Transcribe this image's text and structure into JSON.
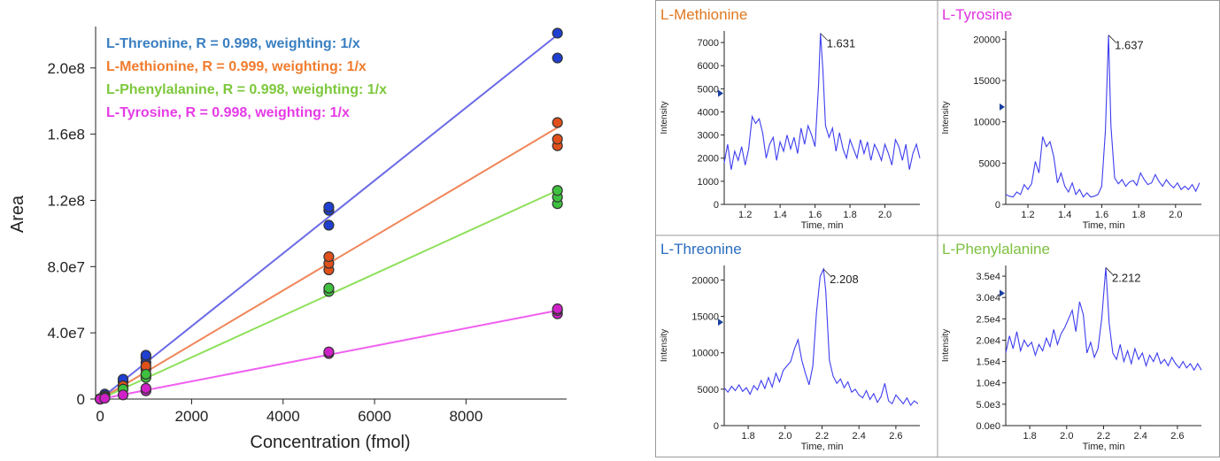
{
  "chart_data": [
    {
      "type": "scatter",
      "xlabel": "Concentration (fmol)",
      "ylabel": "Area",
      "xlim": [
        -100,
        10200
      ],
      "ylim": [
        0,
        225000000
      ],
      "x_ticks": [
        0,
        2000,
        4000,
        6000,
        8000
      ],
      "x_tick_labels": [
        "0",
        "2000",
        "4000",
        "6000",
        "8000"
      ],
      "y_ticks": [
        0,
        40000000,
        80000000,
        120000000,
        160000000,
        200000000
      ],
      "y_tick_labels": [
        "0",
        "4.0e7",
        "8.0e7",
        "1.2e8",
        "1.6e8",
        "2.0e8"
      ],
      "legend_placement": "top-left",
      "series": [
        {
          "name": "L-Threonine",
          "label": "L-Threonine, R = 0.998, weighting: 1/x",
          "color": "#3a7fc1",
          "marker_color": "#1f3fd1",
          "line_color": "#6a6ae6",
          "fit": {
            "slope": 22000,
            "intercept": 0
          },
          "points": [
            [
              0,
              0
            ],
            [
              0,
              300000
            ],
            [
              100,
              2500000
            ],
            [
              100,
              3000000
            ],
            [
              500,
              10500000
            ],
            [
              500,
              12000000
            ],
            [
              1000,
              22000000
            ],
            [
              1000,
              25000000
            ],
            [
              1000,
              26500000
            ],
            [
              5000,
              105000000
            ],
            [
              5000,
              114000000
            ],
            [
              5000,
              116000000
            ],
            [
              10000,
              206000000
            ],
            [
              10000,
              221000000
            ]
          ]
        },
        {
          "name": "L-Methionine",
          "label": "L-Methionine, R = 0.999, weighting: 1/x",
          "color": "#f07c2e",
          "marker_color": "#e0501a",
          "line_color": "#f0875a",
          "fit": {
            "slope": 16400,
            "intercept": 0
          },
          "points": [
            [
              0,
              0
            ],
            [
              100,
              1800000
            ],
            [
              500,
              8000000
            ],
            [
              1000,
              15000000
            ],
            [
              1000,
              18000000
            ],
            [
              1000,
              20000000
            ],
            [
              5000,
              78000000
            ],
            [
              5000,
              82000000
            ],
            [
              5000,
              86000000
            ],
            [
              10000,
              153000000
            ],
            [
              10000,
              157000000
            ],
            [
              10000,
              167000000
            ]
          ]
        },
        {
          "name": "L-Phenylalanine",
          "label": "L-Phenylalanine, R = 0.998, weighting: 1/x",
          "color": "#7dc83c",
          "marker_color": "#3ec13e",
          "line_color": "#8ee05a",
          "fit": {
            "slope": 12600,
            "intercept": 0
          },
          "points": [
            [
              0,
              0
            ],
            [
              100,
              1200000
            ],
            [
              500,
              6000000
            ],
            [
              1000,
              13000000
            ],
            [
              1000,
              15000000
            ],
            [
              5000,
              65000000
            ],
            [
              5000,
              67000000
            ],
            [
              10000,
              118000000
            ],
            [
              10000,
              122000000
            ],
            [
              10000,
              126000000
            ]
          ]
        },
        {
          "name": "L-Tyrosine",
          "label": "L-Tyrosine, R = 0.998, weighting: 1/x",
          "color": "#e63be6",
          "marker_color": "#d020c8",
          "line_color": "#f060f0",
          "fit": {
            "slope": 5350,
            "intercept": 0
          },
          "points": [
            [
              0,
              0
            ],
            [
              100,
              500000
            ],
            [
              500,
              2500000
            ],
            [
              1000,
              5000000
            ],
            [
              1000,
              6500000
            ],
            [
              5000,
              27500000
            ],
            [
              5000,
              28500000
            ],
            [
              10000,
              51500000
            ],
            [
              10000,
              53500000
            ],
            [
              10000,
              54500000
            ]
          ]
        }
      ]
    },
    {
      "type": "line",
      "title": "L-Methionine",
      "title_color": "#e07820",
      "xlabel": "Time, min",
      "ylabel": "Intensity",
      "xlim": [
        1.08,
        2.2
      ],
      "ylim": [
        0,
        7500
      ],
      "x_ticks": [
        1.2,
        1.4,
        1.6,
        1.8,
        2.0
      ],
      "x_tick_labels": [
        "1.2",
        "1.4",
        "1.6",
        "1.8",
        "2.0"
      ],
      "y_ticks": [
        0,
        1000,
        2000,
        3000,
        4000,
        5000,
        6000,
        7000
      ],
      "y_tick_labels": [
        "0",
        "1000",
        "2000",
        "3000",
        "4000",
        "5000",
        "6000",
        "7000"
      ],
      "peak_label": "1.631",
      "peak": [
        1.631,
        7400
      ],
      "marker_y": 4800,
      "x": [
        1.08,
        1.1,
        1.12,
        1.14,
        1.16,
        1.18,
        1.2,
        1.22,
        1.24,
        1.26,
        1.28,
        1.3,
        1.32,
        1.34,
        1.36,
        1.38,
        1.4,
        1.42,
        1.44,
        1.46,
        1.48,
        1.5,
        1.52,
        1.54,
        1.56,
        1.58,
        1.6,
        1.62,
        1.631,
        1.645,
        1.66,
        1.68,
        1.7,
        1.72,
        1.74,
        1.76,
        1.78,
        1.8,
        1.82,
        1.84,
        1.86,
        1.88,
        1.9,
        1.92,
        1.94,
        1.96,
        1.98,
        2.0,
        2.02,
        2.04,
        2.06,
        2.08,
        2.1,
        2.12,
        2.14,
        2.16,
        2.18,
        2.2
      ],
      "y": [
        1800,
        2600,
        1500,
        2300,
        1900,
        2500,
        1700,
        2400,
        3800,
        3500,
        3700,
        3100,
        2000,
        2600,
        2900,
        1900,
        2700,
        2300,
        3000,
        2400,
        2900,
        2200,
        3300,
        2600,
        3400,
        3000,
        2500,
        5200,
        7400,
        5800,
        3400,
        2900,
        3300,
        2300,
        3100,
        2400,
        2000,
        2800,
        2400,
        2000,
        2800,
        2200,
        2700,
        1900,
        2600,
        2300,
        1900,
        2600,
        2200,
        1700,
        2800,
        2500,
        1900,
        2600,
        1500,
        2200,
        2600,
        2000
      ]
    },
    {
      "type": "line",
      "title": "L-Tyrosine",
      "title_color": "#e030e0",
      "xlabel": "Time, min",
      "ylabel": "Intensity",
      "xlim": [
        1.08,
        2.14
      ],
      "ylim": [
        0,
        21000
      ],
      "x_ticks": [
        1.2,
        1.4,
        1.6,
        1.8,
        2.0
      ],
      "x_tick_labels": [
        "1.2",
        "1.4",
        "1.6",
        "1.8",
        "2.0"
      ],
      "y_ticks": [
        0,
        5000,
        10000,
        15000,
        20000
      ],
      "y_tick_labels": [
        "0",
        "5000",
        "10000",
        "15000",
        "20000"
      ],
      "peak_label": "1.637",
      "peak": [
        1.637,
        20500
      ],
      "marker_y": 11800,
      "x": [
        1.08,
        1.1,
        1.12,
        1.14,
        1.16,
        1.18,
        1.2,
        1.22,
        1.24,
        1.26,
        1.28,
        1.3,
        1.32,
        1.34,
        1.36,
        1.38,
        1.4,
        1.42,
        1.44,
        1.46,
        1.48,
        1.5,
        1.52,
        1.54,
        1.56,
        1.58,
        1.6,
        1.62,
        1.637,
        1.65,
        1.67,
        1.69,
        1.71,
        1.73,
        1.75,
        1.77,
        1.79,
        1.81,
        1.83,
        1.85,
        1.87,
        1.89,
        1.91,
        1.93,
        1.95,
        1.97,
        1.99,
        2.01,
        2.03,
        2.05,
        2.07,
        2.09,
        2.11,
        2.13
      ],
      "y": [
        1200,
        1000,
        900,
        1500,
        1200,
        2400,
        1800,
        2500,
        5200,
        3800,
        8200,
        7000,
        7600,
        5800,
        2600,
        3800,
        2200,
        1500,
        2600,
        1200,
        1800,
        900,
        1400,
        900,
        1000,
        1200,
        2200,
        9000,
        20500,
        9500,
        3200,
        2500,
        3000,
        2200,
        2700,
        2900,
        2300,
        3800,
        3000,
        2400,
        2600,
        3600,
        2800,
        2200,
        3000,
        2400,
        2000,
        2600,
        1800,
        2200,
        1800,
        2400,
        1600,
        2600
      ]
    },
    {
      "type": "line",
      "title": "L-Threonine",
      "title_color": "#2a6cc0",
      "xlabel": "Time, min",
      "ylabel": "Intensity",
      "xlim": [
        1.67,
        2.73
      ],
      "ylim": [
        0,
        22000
      ],
      "x_ticks": [
        1.8,
        2.0,
        2.2,
        2.4,
        2.6
      ],
      "x_tick_labels": [
        "1.8",
        "2.0",
        "2.2",
        "2.4",
        "2.6"
      ],
      "y_ticks": [
        0,
        5000,
        10000,
        15000,
        20000
      ],
      "y_tick_labels": [
        "0",
        "5000",
        "10000",
        "15000",
        "20000"
      ],
      "peak_label": "2.208",
      "peak": [
        2.208,
        21500
      ],
      "marker_y": 14200,
      "x": [
        1.67,
        1.69,
        1.71,
        1.73,
        1.75,
        1.77,
        1.79,
        1.81,
        1.83,
        1.85,
        1.87,
        1.89,
        1.91,
        1.93,
        1.95,
        1.97,
        1.99,
        2.01,
        2.03,
        2.05,
        2.07,
        2.09,
        2.11,
        2.13,
        2.15,
        2.17,
        2.19,
        2.208,
        2.22,
        2.24,
        2.26,
        2.28,
        2.3,
        2.32,
        2.34,
        2.36,
        2.38,
        2.4,
        2.42,
        2.44,
        2.46,
        2.48,
        2.5,
        2.52,
        2.54,
        2.56,
        2.58,
        2.6,
        2.62,
        2.64,
        2.66,
        2.68,
        2.7,
        2.72
      ],
      "y": [
        5200,
        4600,
        5400,
        4800,
        5600,
        4700,
        5200,
        4300,
        5500,
        4900,
        6200,
        5100,
        6600,
        5300,
        7200,
        6000,
        7600,
        8200,
        8800,
        10500,
        11800,
        9000,
        7200,
        5600,
        8200,
        15500,
        20500,
        21500,
        18500,
        9000,
        6800,
        5800,
        6400,
        5200,
        6000,
        4600,
        5000,
        4200,
        3800,
        4800,
        3600,
        4400,
        3200,
        4000,
        5800,
        3400,
        3000,
        4200,
        3600,
        3000,
        3800,
        2800,
        3400,
        3000
      ]
    },
    {
      "type": "line",
      "title": "L-Phenylalanine",
      "title_color": "#7dc040",
      "xlabel": "Time, min",
      "ylabel": "Intensity",
      "xlim": [
        1.67,
        2.73
      ],
      "ylim": [
        0,
        37500
      ],
      "x_ticks": [
        1.8,
        2.0,
        2.2,
        2.4,
        2.6
      ],
      "x_tick_labels": [
        "1.8",
        "2.0",
        "2.2",
        "2.4",
        "2.6"
      ],
      "y_ticks": [
        0,
        5000,
        10000,
        15000,
        20000,
        25000,
        30000,
        35000
      ],
      "y_tick_labels": [
        "0.0e0",
        "5.0e3",
        "1.0e4",
        "1.5e4",
        "2.0e4",
        "2.5e4",
        "3.0e4",
        "3.5e4"
      ],
      "peak_label": "2.212",
      "peak": [
        2.212,
        37000
      ],
      "marker_y": 31000,
      "x": [
        1.67,
        1.69,
        1.71,
        1.73,
        1.75,
        1.77,
        1.79,
        1.81,
        1.83,
        1.85,
        1.87,
        1.89,
        1.91,
        1.93,
        1.95,
        1.97,
        1.99,
        2.01,
        2.03,
        2.05,
        2.07,
        2.09,
        2.11,
        2.13,
        2.15,
        2.17,
        2.19,
        2.212,
        2.23,
        2.25,
        2.27,
        2.29,
        2.31,
        2.33,
        2.35,
        2.37,
        2.39,
        2.41,
        2.43,
        2.45,
        2.47,
        2.49,
        2.51,
        2.53,
        2.55,
        2.57,
        2.59,
        2.61,
        2.63,
        2.65,
        2.67,
        2.69,
        2.71,
        2.73
      ],
      "y": [
        17000,
        21000,
        18000,
        22000,
        17500,
        20000,
        18500,
        19500,
        16500,
        19000,
        17500,
        20500,
        18500,
        22500,
        19000,
        21500,
        23000,
        25000,
        27000,
        22000,
        29000,
        26000,
        17000,
        19500,
        16000,
        18000,
        25000,
        37000,
        24000,
        17000,
        15500,
        19000,
        15000,
        17500,
        14500,
        18000,
        15500,
        17000,
        14000,
        16500,
        15000,
        17000,
        14500,
        15500,
        14000,
        16000,
        14500,
        13500,
        15000,
        13500,
        14500,
        13000,
        14500,
        13000
      ]
    }
  ]
}
